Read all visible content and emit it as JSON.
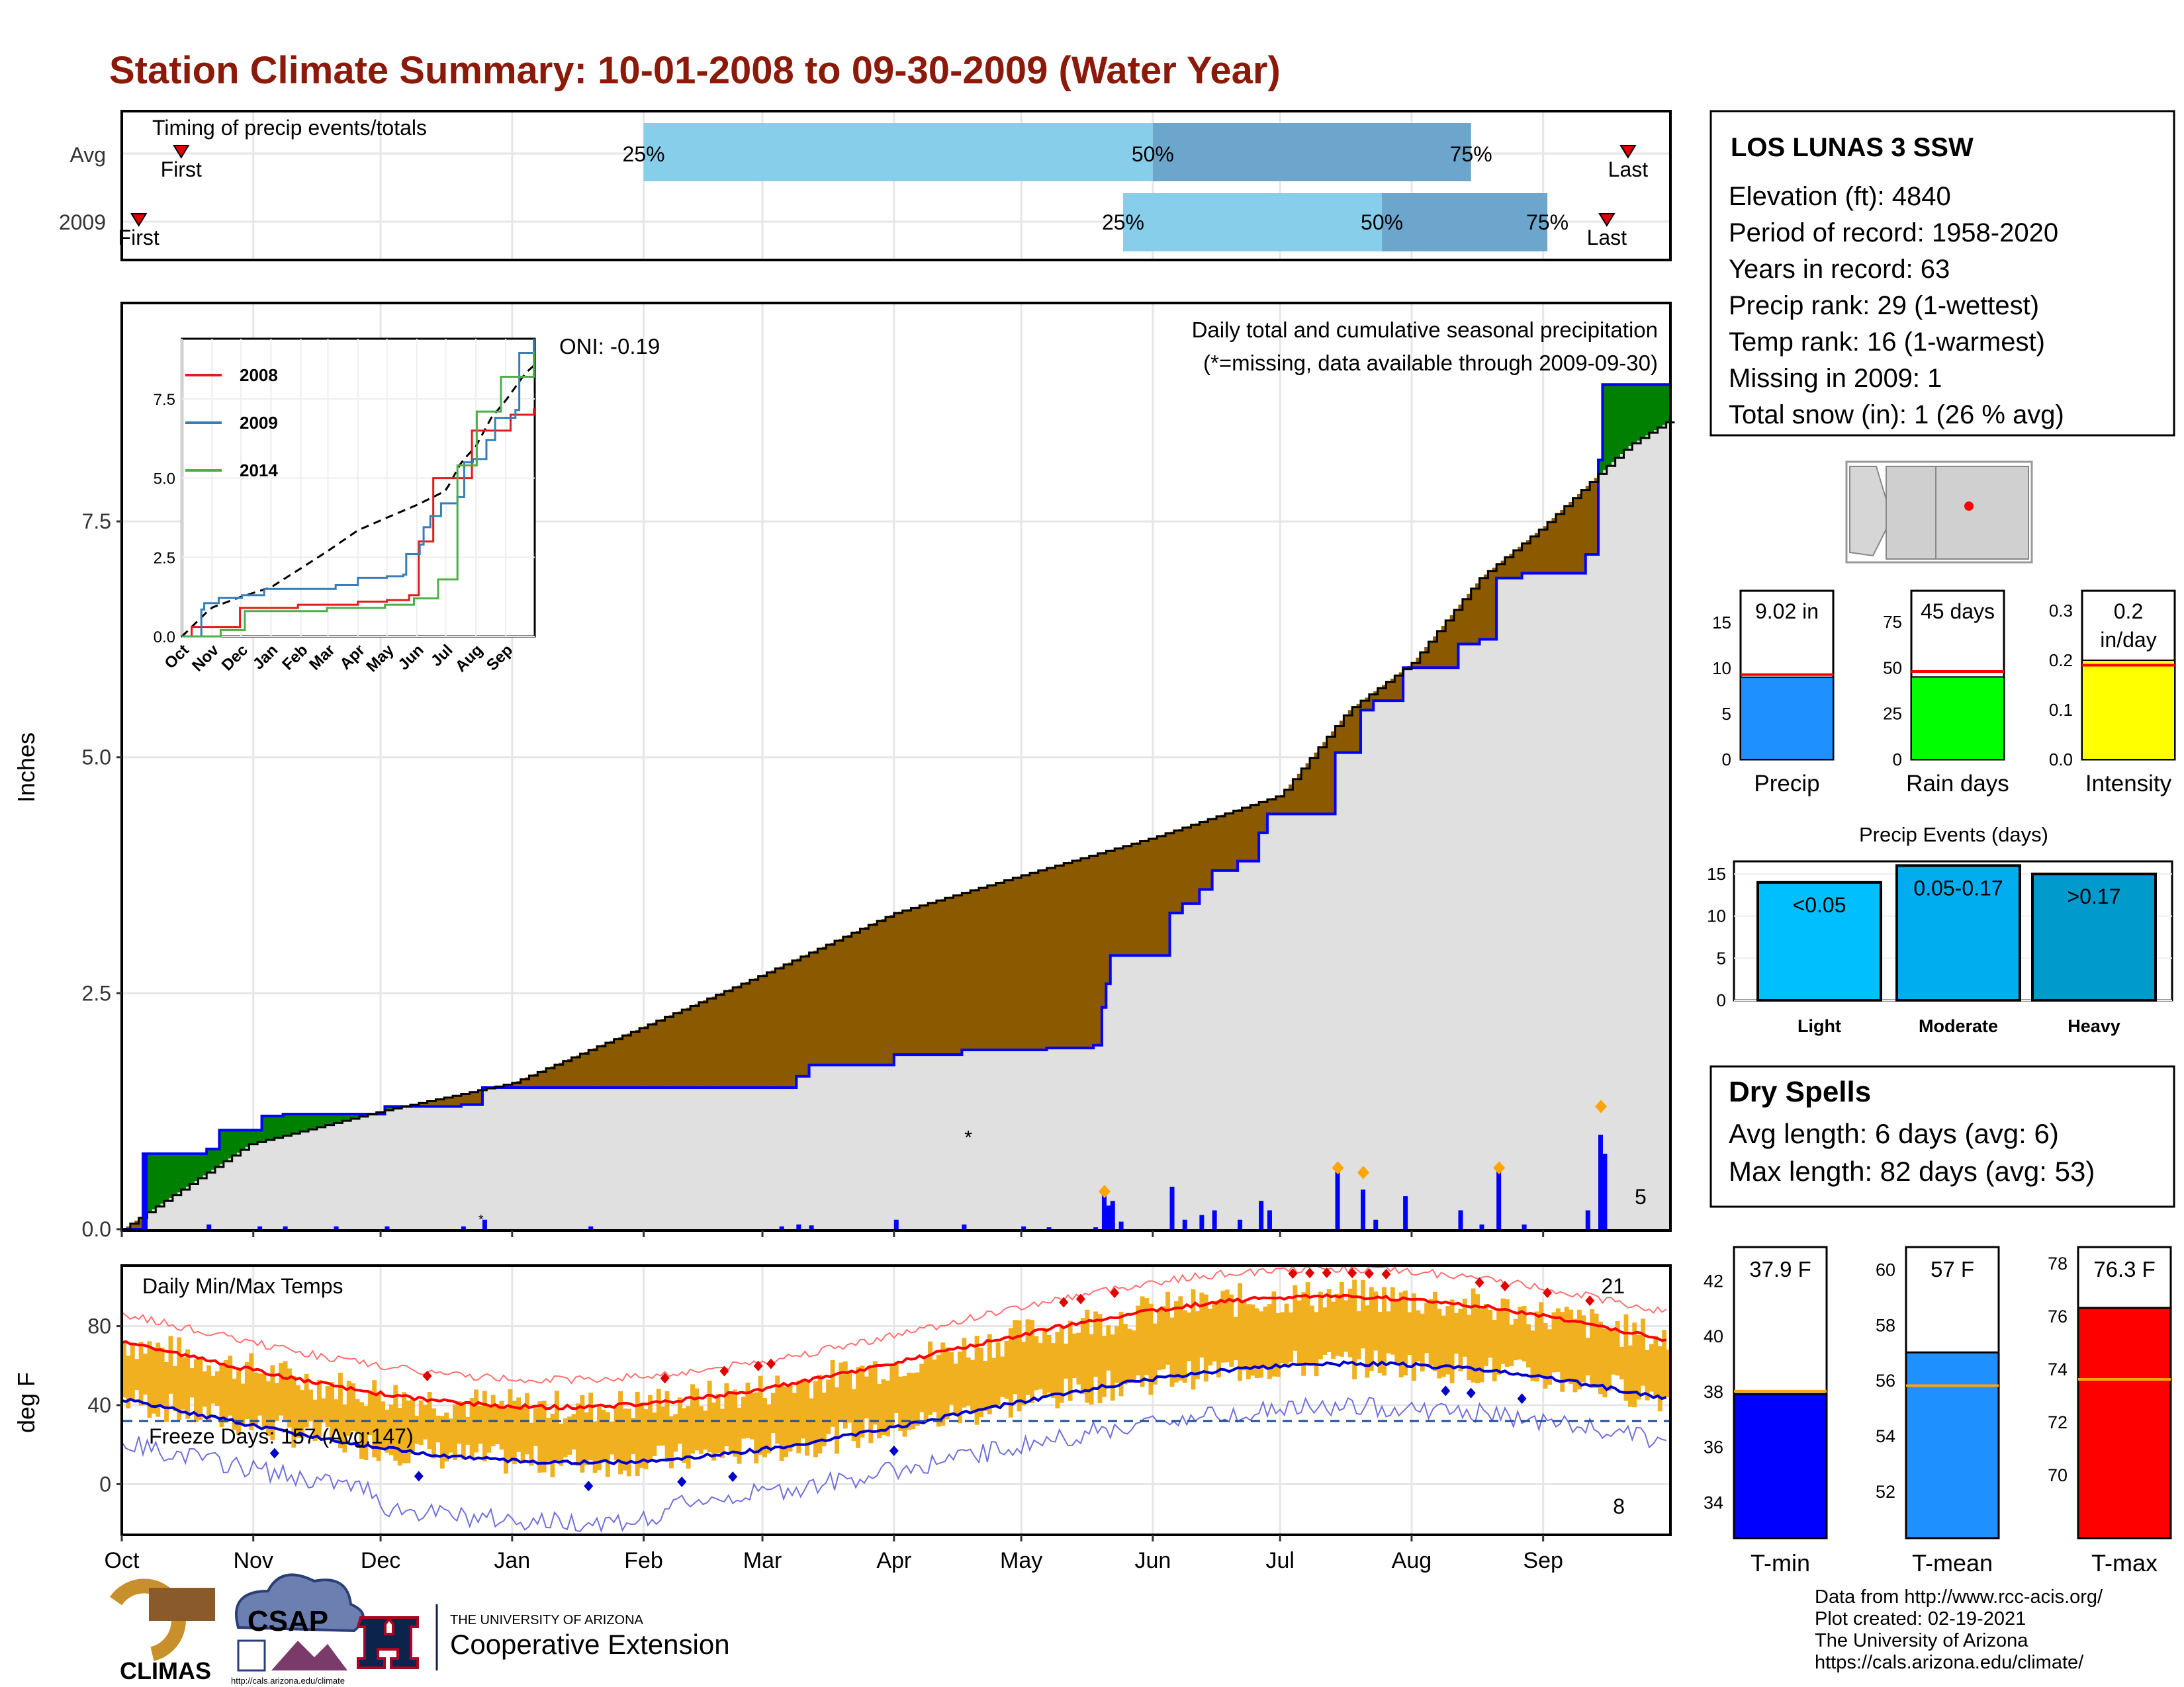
{
  "title": "Station Climate Summary: 10-01-2008 to 09-30-2009 (Water Year)",
  "months": [
    "Oct",
    "Nov",
    "Dec",
    "Jan",
    "Feb",
    "Mar",
    "Apr",
    "May",
    "Jun",
    "Jul",
    "Aug",
    "Sep"
  ],
  "timing": {
    "title": "Timing of precip events/totals",
    "rows": [
      {
        "label": "Avg",
        "first_label": "First",
        "last_label": "Last",
        "first_day": 14,
        "last_day": 355,
        "p25_day": 123,
        "p50_day": 243,
        "p75_day": 318,
        "p25_label": "25%",
        "p50_label": "50%",
        "p75_label": "75%"
      },
      {
        "label": "2009",
        "first_label": "First",
        "last_label": "Last",
        "first_day": 4,
        "last_day": 350,
        "p25_day": 236,
        "p50_day": 297,
        "p75_day": 336,
        "p25_label": "25%",
        "p50_label": "50%",
        "p75_label": "75%"
      }
    ],
    "colors": {
      "early": "#87CEEB",
      "late": "#6CA6CD",
      "marker": "#e00000"
    }
  },
  "main_panel": {
    "title": "Daily total and cumulative seasonal precipitation",
    "note": "(*=missing, data available through 2009-09-30)",
    "oni": "ONI: -0.19",
    "ylabel": "Inches",
    "yticks": [
      "0.0",
      "2.5",
      "5.0",
      "7.5"
    ],
    "ylim": [
      0,
      9.8
    ],
    "count_label": "5",
    "colors": {
      "above": "#008000",
      "below": "#8B5A00",
      "fill": "#e0e0e0",
      "line": "#0000ff",
      "avg": "#000000",
      "missing": "#ff0000",
      "top5": "#FFA500"
    }
  },
  "inset": {
    "yticks": [
      "0.0",
      "2.5",
      "5.0",
      "7.5"
    ],
    "xticks": [
      "Oct",
      "Nov",
      "Dec",
      "Jan",
      "Feb",
      "Mar",
      "Apr",
      "May",
      "Jun",
      "Jul",
      "Aug",
      "Sep"
    ],
    "legend": [
      {
        "name": "2008",
        "color": "#e41a1c"
      },
      {
        "name": "2009",
        "color": "#377eb8"
      },
      {
        "name": "2014",
        "color": "#4daf4a"
      }
    ]
  },
  "temps_panel": {
    "title": "Daily Min/Max Temps",
    "ylabel": "deg F",
    "yticks": [
      "0",
      "40",
      "80"
    ],
    "ylim": [
      -25,
      110
    ],
    "freeze_label": "Freeze Days: 157 (Avg:147)",
    "freeze_temp": 32,
    "max_records_label": "21",
    "min_records_label": "8",
    "colors": {
      "bar": "#F0B020",
      "max_avg": "#ff0000",
      "min_avg": "#0000cc",
      "max_rec": "#ff7070",
      "min_rec": "#7070dd"
    }
  },
  "station": {
    "name": "LOS LUNAS 3 SSW",
    "lines": [
      "Elevation (ft): 4840",
      "Period of record: 1958-2020",
      "Years in record: 63",
      "Precip rank: 29 (1-wettest)",
      "Temp rank: 16 (1-warmest)",
      "Missing in 2009: 1",
      "Total snow (in): 1 (26 % avg)"
    ]
  },
  "summary_bars": [
    {
      "label": "Precip",
      "value_label": "9.02 in",
      "value": 9.02,
      "avg": 9.3,
      "ymax": 18.5,
      "yticks": [
        0,
        5,
        10,
        15
      ],
      "color": "#1E90FF"
    },
    {
      "label": "Rain days",
      "value_label": "45 days",
      "value": 45,
      "avg": 48,
      "ymax": 92,
      "yticks": [
        0,
        25,
        50,
        75
      ],
      "color": "#00ff00"
    },
    {
      "label": "Intensity",
      "value_label_1": "0.2",
      "value_label_2": "in/day",
      "value": 0.2,
      "avg": 0.19,
      "ymax": 0.34,
      "yticks": [
        "0.0",
        "0.1",
        "0.2",
        "0.3"
      ],
      "color": "#ffff00"
    }
  ],
  "precip_events": {
    "title": "Precip Events (days)",
    "yticks": [
      0,
      5,
      10,
      15
    ],
    "ymax": 16.5,
    "bars": [
      {
        "category": "Light",
        "range": "<0.05",
        "value": 14,
        "color": "#00BFFF"
      },
      {
        "category": "Moderate",
        "range": "0.05-0.17",
        "value": 16,
        "color": "#00AEEF"
      },
      {
        "category": "Heavy",
        "range": ">0.17",
        "value": 15,
        "color": "#009ACD"
      }
    ]
  },
  "dry_spells": {
    "title": "Dry Spells",
    "avg_length": "Avg length: 6 days (avg: 6)",
    "max_length": "Max length: 82 days (avg: 53)"
  },
  "temp_bars": [
    {
      "label": "T-min",
      "value_label": "37.9 F",
      "value": 37.9,
      "avg": 38.0,
      "ymin": 32.7,
      "ymax": 43.2,
      "yticks": [
        34,
        36,
        38,
        40,
        42
      ],
      "color": "#0000ff"
    },
    {
      "label": "T-mean",
      "value_label": "57 F",
      "value": 57.0,
      "avg": 55.8,
      "ymin": 50.3,
      "ymax": 60.8,
      "yticks": [
        52,
        54,
        56,
        58,
        60
      ],
      "color": "#1E90FF"
    },
    {
      "label": "T-max",
      "value_label": "76.3 F",
      "value": 76.3,
      "avg": 73.6,
      "ymin": 67.6,
      "ymax": 78.6,
      "yticks": [
        70,
        72,
        74,
        76,
        78
      ],
      "color": "#ff0000"
    }
  ],
  "footer": {
    "lines": [
      "Data from http://www.rcc-acis.org/",
      "Plot created: 02-19-2021",
      "The University of Arizona",
      "https://cals.arizona.edu/climate/"
    ],
    "logo_climas": "CLIMAS",
    "logo_csap": "CSAP",
    "logo_csap_url": "http://cals.arizona.edu/climate",
    "logo_ua_top": "THE UNIVERSITY OF ARIZONA",
    "logo_ua_bottom": "Cooperative Extension"
  }
}
